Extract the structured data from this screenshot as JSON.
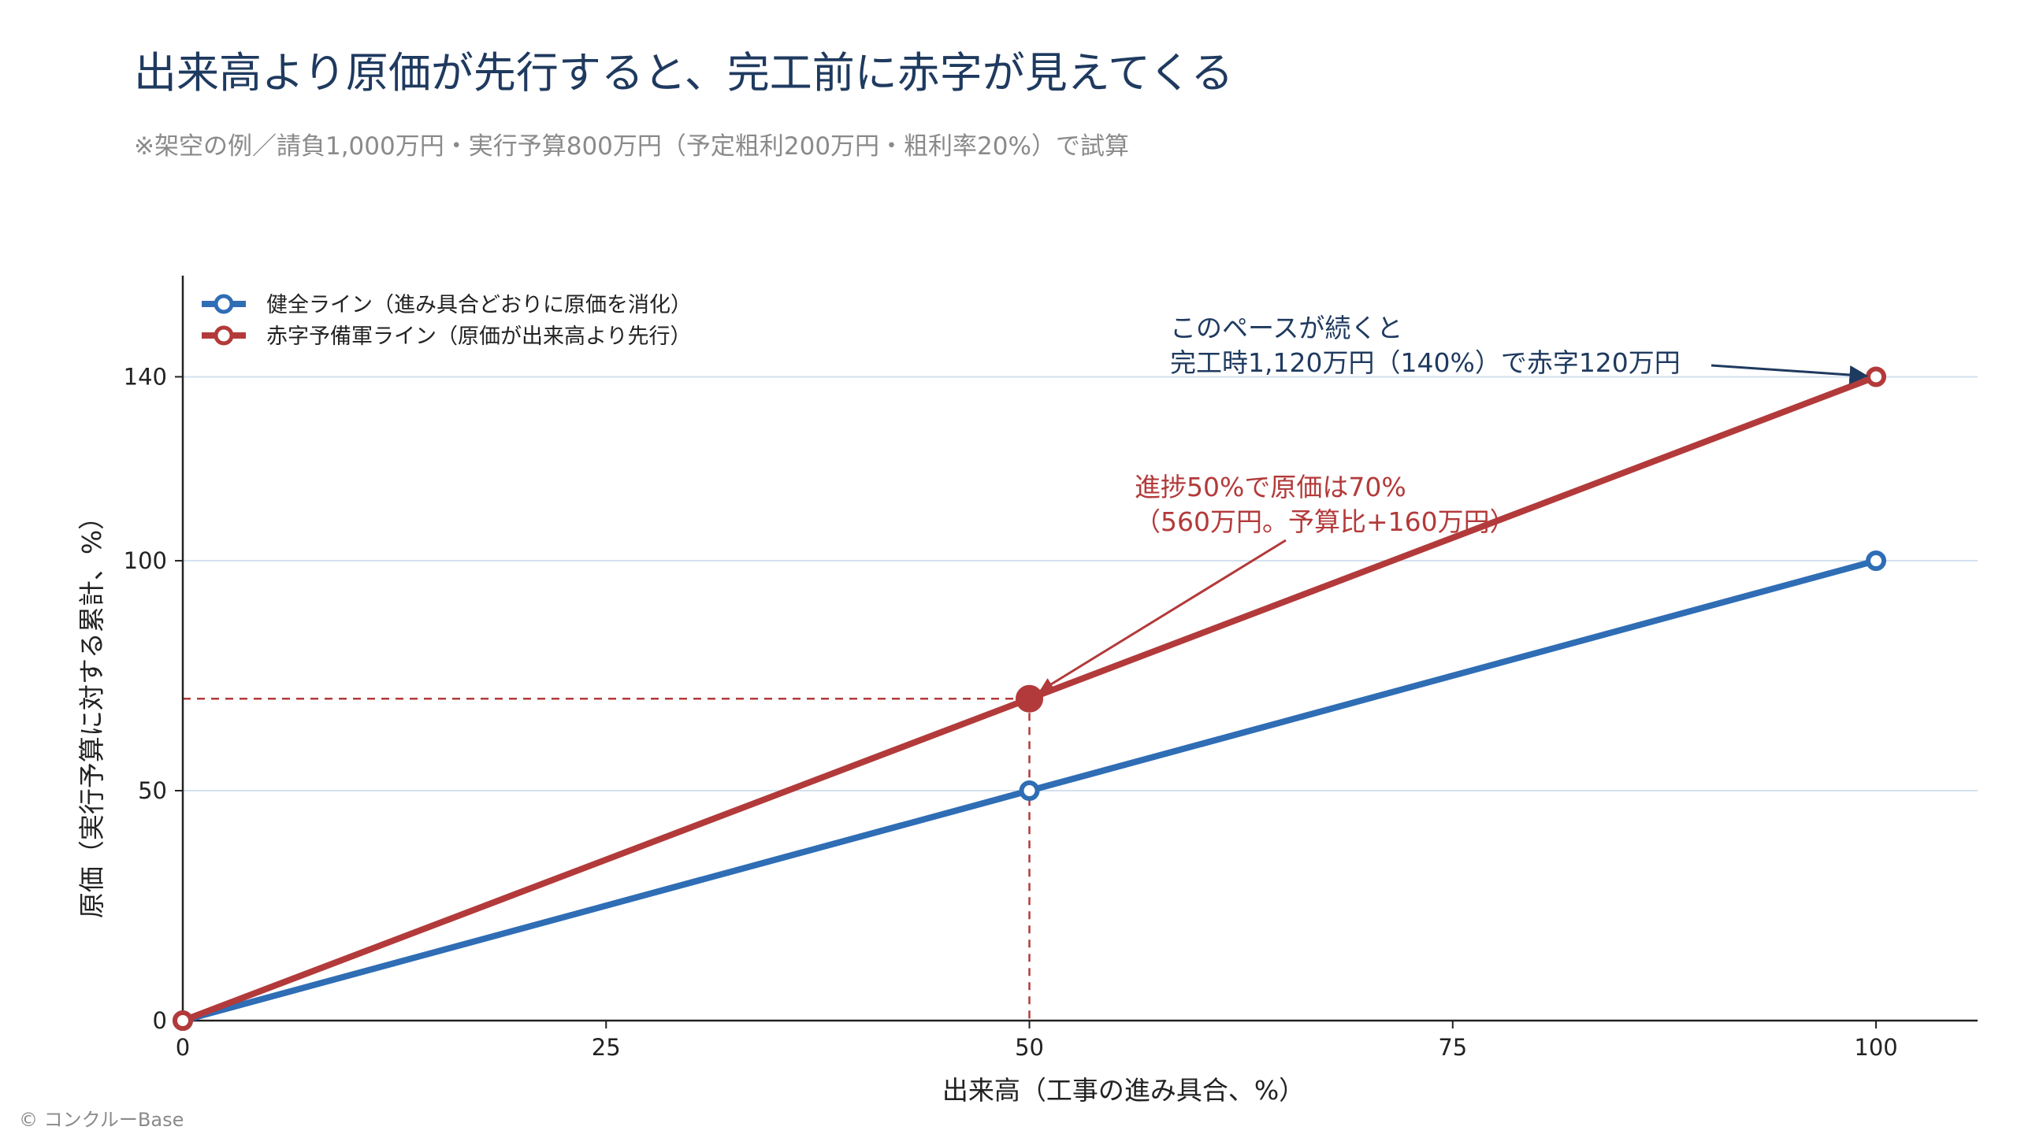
{
  "header": {
    "title": "出来高より原価が先行すると、完工前に赤字が見えてくる",
    "subtitle": "※架空の例／請負1,000万円・実行予算800万円（予定粗利200万円・粗利率20%）で試算"
  },
  "footer": {
    "credit": "© コンクルーBase"
  },
  "colors": {
    "title": "#1f3a5f",
    "healthy": "#2f6db5",
    "deficit": "#b33a3a",
    "note_dark": "#1f3a5f",
    "gridline": "#d3e1ef",
    "axis": "#222222",
    "subtle_text": "#8a8a8a"
  },
  "chart_data": {
    "type": "line",
    "xlabel": "出来高（工事の進み具合、%）",
    "ylabel": "原価（実行予算に対する累計、%）",
    "xlim": [
      0,
      106
    ],
    "ylim": [
      0,
      162
    ],
    "xticks": [
      0,
      25,
      50,
      75,
      100
    ],
    "yticks": [
      0,
      50,
      100,
      140
    ],
    "grid": "horizontal",
    "legend_placement": "top-left",
    "series": [
      {
        "name": "健全ライン（進み具合どおりに原価を消化）",
        "color": "#2f6db5",
        "x": [
          0,
          50,
          100
        ],
        "y": [
          0,
          50,
          100
        ]
      },
      {
        "name": "赤字予備軍ライン（原価が出来高より先行）",
        "color": "#b33a3a",
        "x": [
          0,
          50,
          100
        ],
        "y": [
          0,
          70,
          140
        ]
      }
    ],
    "highlight_point": {
      "x": 50,
      "y": 70
    },
    "annotations": [
      {
        "lines": [
          "進捗50%で原価は70%",
          "（560万円。予算比+160万円）"
        ],
        "color": "#b33a3a",
        "target": {
          "x": 50,
          "y": 70
        }
      },
      {
        "lines": [
          "このペースが続くと",
          "完工時1,120万円（140%）で赤字120万円"
        ],
        "color": "#1f3a5f",
        "target": {
          "x": 100,
          "y": 140
        }
      }
    ]
  }
}
